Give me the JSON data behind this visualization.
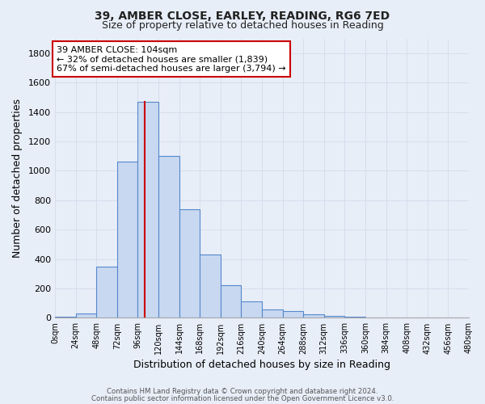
{
  "title_line1": "39, AMBER CLOSE, EARLEY, READING, RG6 7ED",
  "title_line2": "Size of property relative to detached houses in Reading",
  "xlabel": "Distribution of detached houses by size in Reading",
  "ylabel": "Number of detached properties",
  "footnote1": "Contains HM Land Registry data © Crown copyright and database right 2024.",
  "footnote2": "Contains public sector information licensed under the Open Government Licence v3.0.",
  "bin_edges": [
    0,
    24,
    48,
    72,
    96,
    120,
    144,
    168,
    192,
    216,
    240,
    264,
    288,
    312,
    336,
    360,
    384,
    408,
    432,
    456,
    480
  ],
  "bar_heights": [
    10,
    30,
    350,
    1060,
    1470,
    1100,
    740,
    430,
    220,
    110,
    55,
    45,
    25,
    15,
    8,
    5,
    3,
    2,
    2,
    2
  ],
  "bar_color": "#c8d8f0",
  "bar_edge_color": "#5588cc",
  "grid_color": "#d0d8e8",
  "bg_color": "#e8eef8",
  "vline_x": 104,
  "vline_color": "#cc0000",
  "annotation_text_line1": "39 AMBER CLOSE: 104sqm",
  "annotation_text_line2": "← 32% of detached houses are smaller (1,839)",
  "annotation_text_line3": "67% of semi-detached houses are larger (3,794) →",
  "annotation_box_color": "#ffffff",
  "annotation_box_edge_color": "#cc0000",
  "ylim": [
    0,
    1900
  ],
  "yticks": [
    0,
    200,
    400,
    600,
    800,
    1000,
    1200,
    1400,
    1600,
    1800
  ],
  "xtick_labels": [
    "0sqm",
    "24sqm",
    "48sqm",
    "72sqm",
    "96sqm",
    "120sqm",
    "144sqm",
    "168sqm",
    "192sqm",
    "216sqm",
    "240sqm",
    "264sqm",
    "288sqm",
    "312sqm",
    "336sqm",
    "360sqm",
    "384sqm",
    "408sqm",
    "432sqm",
    "456sqm",
    "480sqm"
  ]
}
